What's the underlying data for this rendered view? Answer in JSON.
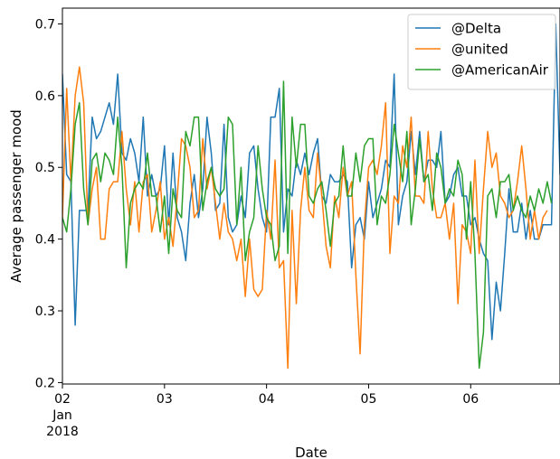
{
  "chart_data": {
    "type": "line",
    "title": "",
    "xlabel": "Date",
    "ylabel": "Average passenger mood",
    "ylim": [
      0.198,
      0.722
    ],
    "xlim": [
      "2018-01-02T00:00",
      "2018-01-06T21:00"
    ],
    "x_ticks": [
      {
        "date": "2018-01-02",
        "label": "02",
        "sublabels": [
          "Jan",
          "2018"
        ]
      },
      {
        "date": "2018-01-03",
        "label": "03",
        "sublabels": []
      },
      {
        "date": "2018-01-04",
        "label": "04",
        "sublabels": []
      },
      {
        "date": "2018-01-05",
        "label": "05",
        "sublabels": []
      },
      {
        "date": "2018-01-06",
        "label": "06",
        "sublabels": []
      }
    ],
    "y_ticks": [
      0.2,
      0.3,
      0.4,
      0.5,
      0.6,
      0.7
    ],
    "y_tick_labels": [
      "0.2",
      "0.3",
      "0.4",
      "0.5",
      "0.6",
      "0.7"
    ],
    "x_start": "2018-01-02T00:00",
    "x_interval_hours": 1,
    "legend": {
      "position": "top-right"
    },
    "grid": false,
    "series": [
      {
        "name": "@Delta",
        "color": "#1f77b4",
        "values": [
          0.63,
          0.49,
          0.48,
          0.28,
          0.44,
          0.44,
          0.44,
          0.57,
          0.54,
          0.55,
          0.57,
          0.59,
          0.56,
          0.63,
          0.52,
          0.51,
          0.54,
          0.52,
          0.48,
          0.57,
          0.46,
          0.49,
          0.46,
          0.47,
          0.53,
          0.42,
          0.52,
          0.43,
          0.41,
          0.37,
          0.45,
          0.49,
          0.43,
          0.47,
          0.57,
          0.52,
          0.44,
          0.45,
          0.56,
          0.43,
          0.41,
          0.42,
          0.46,
          0.43,
          0.52,
          0.53,
          0.47,
          0.43,
          0.41,
          0.57,
          0.57,
          0.61,
          0.41,
          0.47,
          0.46,
          0.51,
          0.49,
          0.52,
          0.49,
          0.52,
          0.54,
          0.46,
          0.45,
          0.49,
          0.48,
          0.48,
          0.49,
          0.48,
          0.36,
          0.42,
          0.43,
          0.4,
          0.48,
          0.43,
          0.45,
          0.47,
          0.51,
          0.5,
          0.63,
          0.42,
          0.46,
          0.48,
          0.55,
          0.49,
          0.55,
          0.48,
          0.51,
          0.51,
          0.5,
          0.55,
          0.45,
          0.46,
          0.49,
          0.5,
          0.46,
          0.46,
          0.42,
          0.43,
          0.4,
          0.38,
          0.37,
          0.26,
          0.34,
          0.3,
          0.38,
          0.47,
          0.41,
          0.41,
          0.45,
          0.4,
          0.44,
          0.4,
          0.4,
          0.42,
          0.42,
          0.42,
          0.7,
          0.49,
          0.49,
          0.49,
          0.44
        ]
      },
      {
        "name": "@united",
        "color": "#ff7f0e",
        "values": [
          0.43,
          0.61,
          0.48,
          0.6,
          0.64,
          0.59,
          0.42,
          0.47,
          0.5,
          0.4,
          0.4,
          0.47,
          0.48,
          0.48,
          0.55,
          0.47,
          0.42,
          0.48,
          0.41,
          0.48,
          0.49,
          0.41,
          0.44,
          0.48,
          0.4,
          0.43,
          0.39,
          0.46,
          0.54,
          0.53,
          0.5,
          0.43,
          0.44,
          0.54,
          0.47,
          0.5,
          0.45,
          0.4,
          0.45,
          0.41,
          0.4,
          0.37,
          0.4,
          0.32,
          0.4,
          0.33,
          0.32,
          0.33,
          0.44,
          0.4,
          0.51,
          0.36,
          0.37,
          0.22,
          0.44,
          0.31,
          0.44,
          0.5,
          0.44,
          0.43,
          0.52,
          0.46,
          0.39,
          0.36,
          0.46,
          0.43,
          0.5,
          0.46,
          0.48,
          0.35,
          0.24,
          0.42,
          0.5,
          0.51,
          0.49,
          0.53,
          0.59,
          0.38,
          0.46,
          0.45,
          0.53,
          0.5,
          0.57,
          0.46,
          0.46,
          0.45,
          0.55,
          0.47,
          0.43,
          0.43,
          0.45,
          0.4,
          0.45,
          0.31,
          0.42,
          0.41,
          0.38,
          0.51,
          0.38,
          0.47,
          0.55,
          0.5,
          0.52,
          0.46,
          0.45,
          0.43,
          0.44,
          0.48,
          0.53,
          0.47,
          0.4,
          0.44,
          0.4,
          0.43,
          0.44
        ]
      },
      {
        "name": "@AmericanAir",
        "color": "#2ca02c",
        "values": [
          0.43,
          0.41,
          0.47,
          0.56,
          0.59,
          0.47,
          0.42,
          0.51,
          0.52,
          0.48,
          0.52,
          0.51,
          0.49,
          0.57,
          0.5,
          0.36,
          0.45,
          0.47,
          0.48,
          0.47,
          0.52,
          0.46,
          0.46,
          0.41,
          0.46,
          0.38,
          0.47,
          0.44,
          0.43,
          0.55,
          0.53,
          0.57,
          0.57,
          0.44,
          0.48,
          0.5,
          0.47,
          0.46,
          0.47,
          0.57,
          0.56,
          0.42,
          0.5,
          0.37,
          0.41,
          0.43,
          0.53,
          0.47,
          0.43,
          0.42,
          0.37,
          0.39,
          0.62,
          0.38,
          0.57,
          0.5,
          0.56,
          0.56,
          0.46,
          0.45,
          0.47,
          0.48,
          0.44,
          0.39,
          0.45,
          0.46,
          0.53,
          0.46,
          0.46,
          0.52,
          0.48,
          0.53,
          0.54,
          0.54,
          0.42,
          0.46,
          0.45,
          0.49,
          0.56,
          0.52,
          0.48,
          0.55,
          0.42,
          0.47,
          0.54,
          0.48,
          0.49,
          0.44,
          0.52,
          0.5,
          0.45,
          0.47,
          0.46,
          0.51,
          0.49,
          0.4,
          0.48,
          0.38,
          0.22,
          0.27,
          0.46,
          0.47,
          0.43,
          0.48,
          0.48,
          0.49,
          0.44,
          0.46,
          0.44,
          0.43,
          0.46,
          0.44,
          0.47,
          0.45,
          0.48,
          0.45
        ]
      }
    ]
  }
}
